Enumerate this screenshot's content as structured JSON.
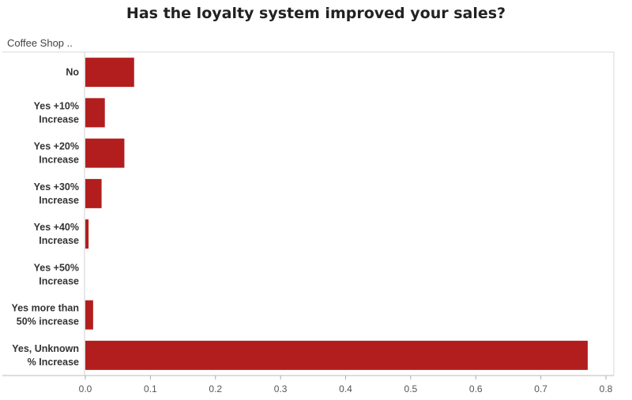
{
  "chart_data": {
    "type": "bar",
    "orientation": "horizontal",
    "title": "Has the loyalty system improved your sales?",
    "row_header": "Coffee Shop ..",
    "categories": [
      [
        "No"
      ],
      [
        "Yes +10%",
        "Increase"
      ],
      [
        "Yes +20%",
        "Increase"
      ],
      [
        "Yes +30%",
        "Increase"
      ],
      [
        "Yes +40%",
        "Increase"
      ],
      [
        "Yes +50%",
        "Increase"
      ],
      [
        "Yes more than",
        "50% increase"
      ],
      [
        "Yes, Unknown",
        "% Increase"
      ]
    ],
    "values": [
      0.075,
      0.03,
      0.06,
      0.025,
      0.005,
      0.0,
      0.012,
      0.772
    ],
    "xlim": [
      0,
      0.8
    ],
    "xticks": [
      "0.0",
      "0.1",
      "0.2",
      "0.3",
      "0.4",
      "0.5",
      "0.6",
      "0.7",
      "0.8"
    ],
    "bar_color": "#b21e1e",
    "grid": false
  }
}
